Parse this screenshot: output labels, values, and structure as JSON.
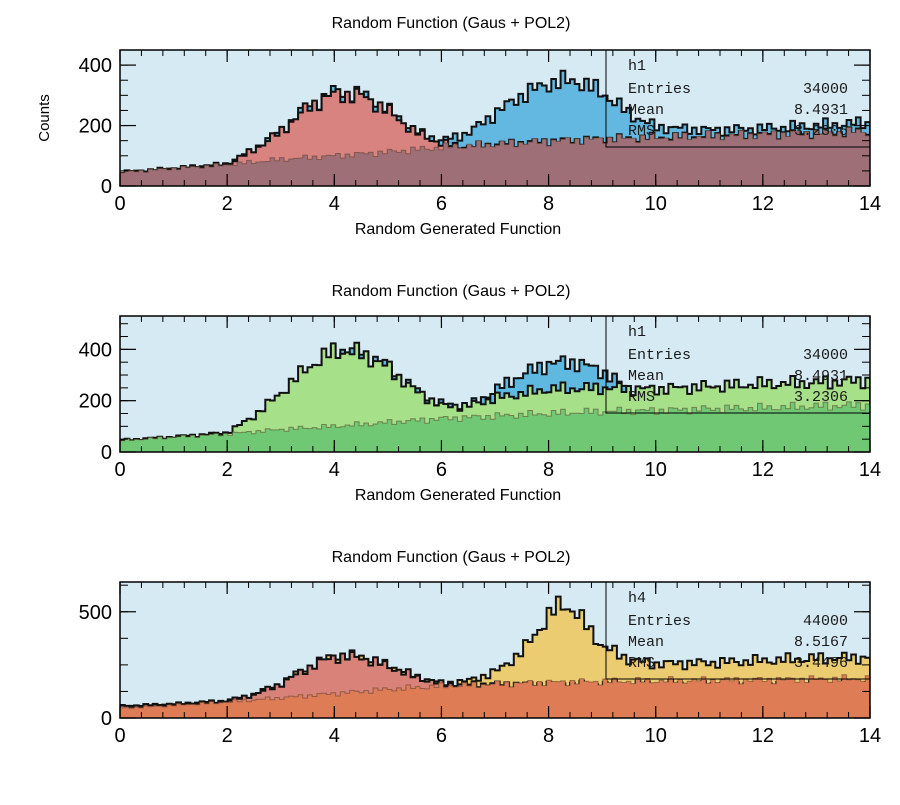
{
  "chart_data": [
    {
      "type": "area",
      "title": "Random Function (Gaus + POL2)",
      "xlabel": "Random Generated Function",
      "ylabel": "Counts",
      "xlim": [
        0,
        14
      ],
      "ylim": [
        0,
        450
      ],
      "xticks": [
        "0",
        "2",
        "4",
        "6",
        "8",
        "10",
        "12",
        "14"
      ],
      "yticks": [
        {
          "label": "0",
          "value": 0
        },
        {
          "label": "200",
          "value": 200
        },
        {
          "label": "400",
          "value": 400
        }
      ],
      "background": "#d6eaf3",
      "series": [
        {
          "role": "background",
          "fill": "#9e6f76",
          "x": [
            0,
            1,
            2,
            3,
            4,
            5,
            6,
            7,
            8,
            9,
            10,
            11,
            12,
            13,
            14
          ],
          "y": [
            45,
            58,
            70,
            88,
            100,
            112,
            128,
            138,
            148,
            155,
            160,
            165,
            170,
            175,
            180
          ]
        },
        {
          "role": "peak",
          "fill": "#d8837f",
          "x": [
            0,
            1,
            2,
            2.5,
            3,
            3.5,
            4,
            4.5,
            5,
            5.5,
            6,
            6.5,
            7,
            8,
            10,
            12,
            14
          ],
          "y": [
            45,
            58,
            72,
            120,
            180,
            260,
            305,
            300,
            250,
            180,
            140,
            130,
            138,
            148,
            160,
            170,
            180
          ]
        },
        {
          "role": "total",
          "fill": "#62b8e0",
          "x": [
            0,
            1,
            2,
            2.5,
            3,
            3.5,
            4,
            4.5,
            5,
            5.5,
            6,
            6.5,
            7,
            7.5,
            8,
            8.5,
            9,
            9.5,
            10,
            11,
            12,
            13,
            14
          ],
          "y": [
            45,
            58,
            72,
            120,
            180,
            260,
            305,
            300,
            250,
            180,
            150,
            175,
            240,
            300,
            340,
            350,
            310,
            240,
            195,
            185,
            190,
            200,
            210
          ]
        }
      ],
      "stats": {
        "name": "h1",
        "rows": [
          [
            "Entries",
            "34000"
          ],
          [
            "Mean",
            "8.4931"
          ],
          [
            "RMS",
            "3.2306"
          ]
        ]
      }
    },
    {
      "type": "area",
      "title": "Random Function (Gaus + POL2)",
      "xlabel": "Random Generated Function",
      "ylabel": "",
      "xlim": [
        0,
        14
      ],
      "ylim": [
        0,
        530
      ],
      "xticks": [
        "0",
        "2",
        "4",
        "6",
        "8",
        "10",
        "12",
        "14"
      ],
      "yticks": [
        {
          "label": "0",
          "value": 0
        },
        {
          "label": "200",
          "value": 200
        },
        {
          "label": "400",
          "value": 400
        }
      ],
      "background": "#d6eaf3",
      "series": [
        {
          "role": "background",
          "fill": "#70c874",
          "x": [
            0,
            1,
            2,
            3,
            4,
            5,
            6,
            7,
            8,
            9,
            10,
            11,
            12,
            13,
            14
          ],
          "y": [
            45,
            58,
            70,
            88,
            100,
            115,
            130,
            140,
            150,
            158,
            162,
            168,
            172,
            178,
            183
          ]
        },
        {
          "role": "total",
          "fill": "#5eb8e0",
          "x": [
            0,
            1,
            2,
            2.5,
            3,
            3.5,
            4,
            4.5,
            5,
            5.5,
            6,
            6.5,
            7,
            7.5,
            8,
            8.5,
            9,
            9.5,
            10,
            11,
            12,
            13,
            14
          ],
          "y": [
            45,
            58,
            72,
            120,
            180,
            270,
            390,
            385,
            330,
            240,
            185,
            175,
            240,
            300,
            345,
            350,
            315,
            245,
            200,
            190,
            195,
            205,
            215
          ]
        },
        {
          "role": "peak",
          "fill": "#a6e088",
          "x": [
            0,
            1,
            2,
            2.5,
            3,
            3.5,
            4,
            4.5,
            5,
            5.5,
            6,
            6.5,
            7,
            8,
            9,
            10,
            11,
            12,
            13,
            14
          ],
          "y": [
            45,
            58,
            75,
            140,
            230,
            330,
            395,
            385,
            330,
            240,
            180,
            180,
            210,
            245,
            250,
            245,
            255,
            265,
            270,
            280
          ]
        }
      ],
      "stats": {
        "name": "h1",
        "rows": [
          [
            "Entries",
            "34000"
          ],
          [
            "Mean",
            "8.4931"
          ],
          [
            "RMS",
            "3.2306"
          ]
        ]
      }
    },
    {
      "type": "area",
      "title": "Random Function (Gaus + POL2)",
      "xlabel": "",
      "ylabel": "",
      "xlim": [
        0,
        14
      ],
      "ylim": [
        0,
        640
      ],
      "xticks": [
        "0",
        "2",
        "4",
        "6",
        "8",
        "10",
        "12",
        "14"
      ],
      "yticks": [
        {
          "label": "0",
          "value": 0
        },
        {
          "label": "500",
          "value": 500
        }
      ],
      "background": "#d6eaf3",
      "series": [
        {
          "role": "background",
          "fill": "#dd7c55",
          "x": [
            0,
            1,
            2,
            3,
            4,
            5,
            6,
            7,
            8,
            9,
            10,
            11,
            12,
            13,
            14
          ],
          "y": [
            45,
            60,
            75,
            95,
            115,
            135,
            150,
            160,
            168,
            172,
            175,
            178,
            180,
            183,
            185
          ]
        },
        {
          "role": "total",
          "fill": "#ebcc70",
          "x": [
            0,
            1,
            2,
            2.5,
            3,
            3.5,
            4,
            4.5,
            5,
            5.5,
            6,
            6.5,
            7,
            7.5,
            8,
            8.25,
            8.5,
            9,
            9.5,
            10,
            11,
            12,
            13,
            14
          ],
          "y": [
            55,
            65,
            80,
            110,
            160,
            235,
            290,
            285,
            245,
            195,
            160,
            175,
            215,
            310,
            480,
            540,
            500,
            340,
            275,
            255,
            260,
            270,
            280,
            285
          ]
        },
        {
          "role": "peak",
          "fill": "#d8827a",
          "x": [
            0,
            1,
            2,
            2.5,
            3,
            3.5,
            4,
            4.5,
            5,
            5.5,
            6,
            6.5,
            7
          ],
          "y": [
            55,
            65,
            80,
            110,
            160,
            235,
            290,
            285,
            245,
            195,
            160,
            160,
            160
          ]
        }
      ],
      "stats": {
        "name": "h4",
        "rows": [
          [
            "Entries",
            "44000"
          ],
          [
            "Mean",
            "8.5167"
          ],
          [
            "RMS",
            "3.4496"
          ]
        ]
      }
    }
  ]
}
